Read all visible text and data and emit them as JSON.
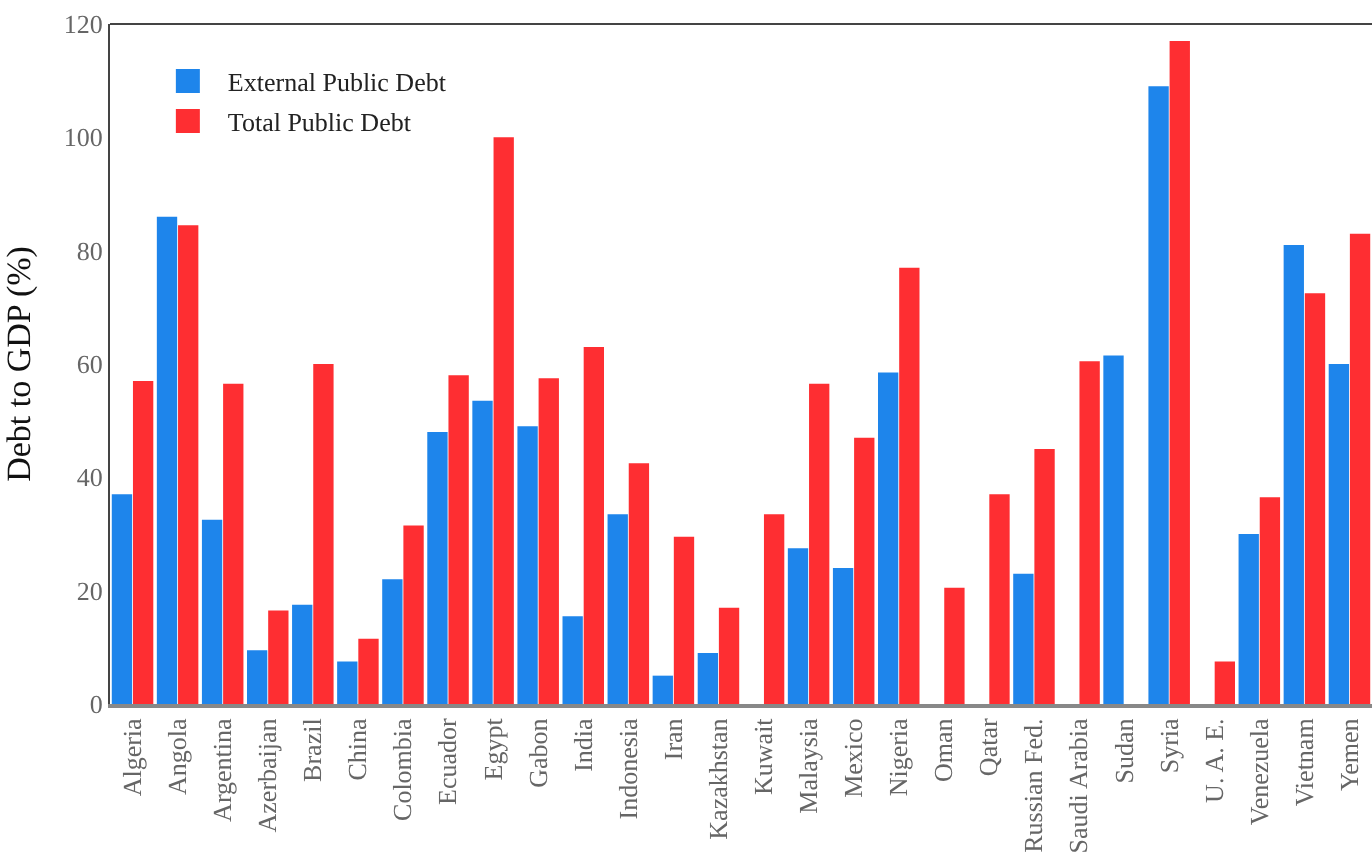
{
  "chart_data": {
    "type": "bar",
    "ylabel": "Debt to GDP (%)",
    "categories": [
      "Algeria",
      "Angola",
      "Argentina",
      "Azerbaijan",
      "Brazil",
      "China",
      "Colombia",
      "Ecuador",
      "Egypt",
      "Gabon",
      "India",
      "Indonesia",
      "Iran",
      "Kazakhstan",
      "Kuwait",
      "Malaysia",
      "Mexico",
      "Nigeria",
      "Oman",
      "Qatar",
      "Russian Fed.",
      "Saudi Arabia",
      "Sudan",
      "Syria",
      "U. A. E.",
      "Venezuela",
      "Vietnam",
      "Yemen"
    ],
    "series": [
      {
        "name": "External Public Debt",
        "color": "#1e85eb",
        "values": [
          37,
          86,
          32.5,
          9.5,
          17.5,
          7.5,
          22,
          48,
          53.5,
          49,
          15.5,
          33.5,
          5,
          9,
          null,
          27.5,
          24,
          58.5,
          null,
          null,
          23,
          null,
          61.5,
          109,
          null,
          30,
          81,
          60
        ]
      },
      {
        "name": "Total Public Debt",
        "color": "#fe2e32",
        "values": [
          57,
          84.5,
          56.5,
          16.5,
          60,
          11.5,
          31.5,
          58,
          100,
          57.5,
          63,
          42.5,
          29.5,
          17,
          33.5,
          56.5,
          47,
          77,
          20.5,
          37,
          45,
          60.5,
          null,
          117,
          7.5,
          36.5,
          72.5,
          83
        ]
      }
    ],
    "ylim": [
      0,
      120
    ],
    "yticks": [
      0,
      20,
      40,
      60,
      80,
      100,
      120
    ],
    "legend": "top left"
  }
}
